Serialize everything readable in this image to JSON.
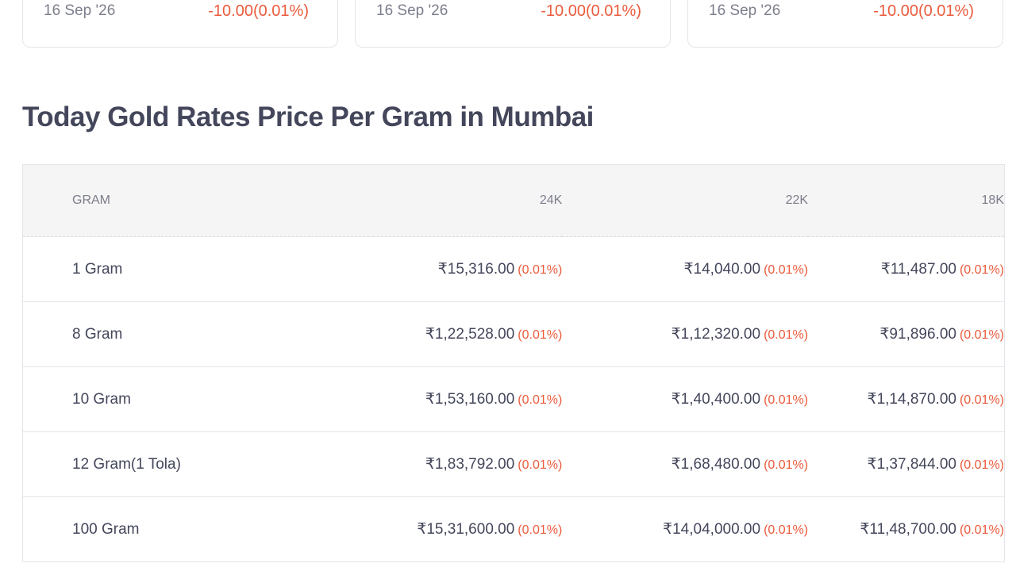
{
  "cards": [
    {
      "date": "16 Sep '26",
      "change": "-10.00(0.01%)"
    },
    {
      "date": "16 Sep '26",
      "change": "-10.00(0.01%)"
    },
    {
      "date": "16 Sep '26",
      "change": "-10.00(0.01%)"
    }
  ],
  "heading": "Today Gold Rates Price Per Gram in Mumbai",
  "colors": {
    "negative": "#eb5b3c",
    "text": "#44475b",
    "muted": "#7c7e8c"
  },
  "table": {
    "headers": [
      "GRAM",
      "24K",
      "22K",
      "18K"
    ],
    "rows": [
      {
        "label": "1 Gram",
        "k24": "₹15,316.00",
        "k22": "₹14,040.00",
        "k18": "₹11,487.00",
        "pct": "(0.01%)"
      },
      {
        "label": "8 Gram",
        "k24": "₹1,22,528.00",
        "k22": "₹1,12,320.00",
        "k18": "₹91,896.00",
        "pct": "(0.01%)"
      },
      {
        "label": "10 Gram",
        "k24": "₹1,53,160.00",
        "k22": "₹1,40,400.00",
        "k18": "₹1,14,870.00",
        "pct": "(0.01%)"
      },
      {
        "label": "12 Gram(1 Tola)",
        "k24": "₹1,83,792.00",
        "k22": "₹1,68,480.00",
        "k18": "₹1,37,844.00",
        "pct": "(0.01%)"
      },
      {
        "label": "100 Gram",
        "k24": "₹15,31,600.00",
        "k22": "₹14,04,000.00",
        "k18": "₹11,48,700.00",
        "pct": "(0.01%)"
      }
    ]
  }
}
